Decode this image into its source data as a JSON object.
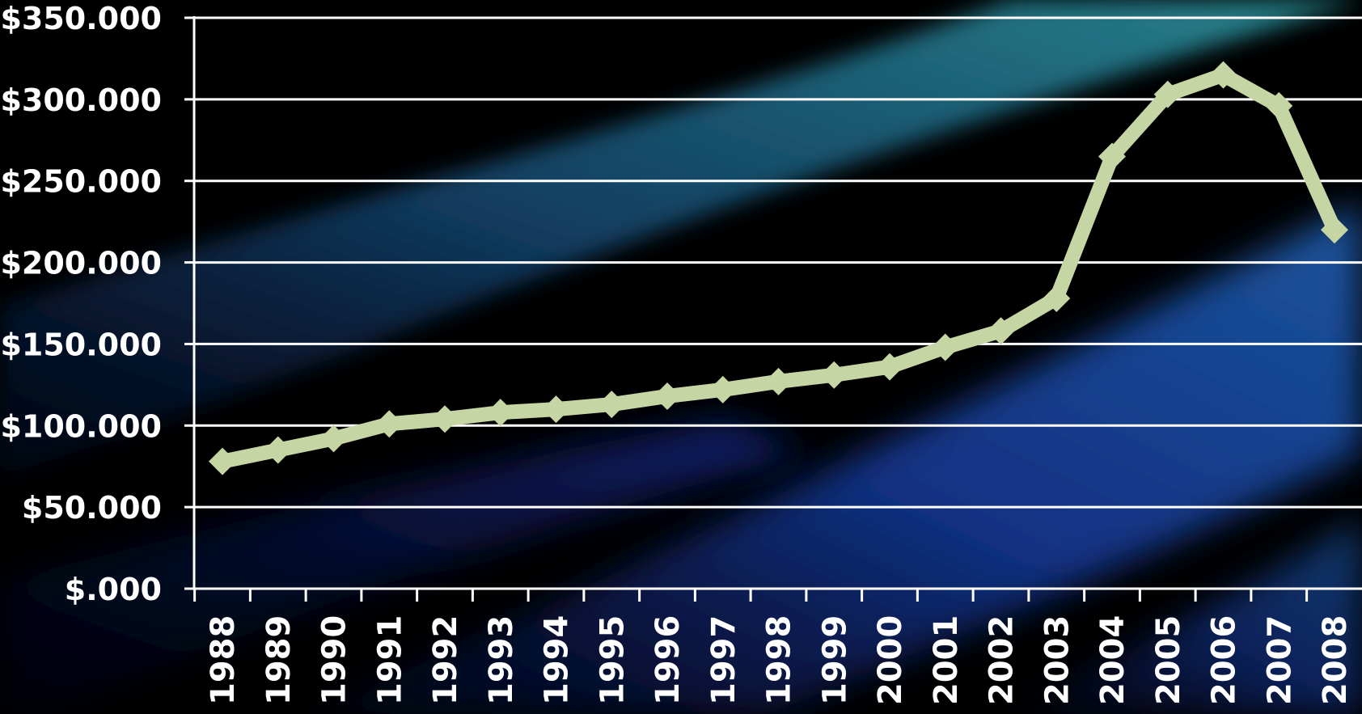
{
  "chart_data": {
    "type": "line",
    "title": "",
    "xlabel": "",
    "ylabel": "",
    "categories": [
      "1988",
      "1989",
      "1990",
      "1991",
      "1992",
      "1993",
      "1994",
      "1995",
      "1996",
      "1997",
      "1998",
      "1999",
      "2000",
      "2001",
      "2002",
      "2003",
      "2004",
      "2005",
      "2006",
      "2007",
      "2008"
    ],
    "series": [
      {
        "values": [
          78000,
          85000,
          92000,
          101000,
          104000,
          108000,
          110000,
          113000,
          118000,
          122000,
          127000,
          131000,
          136000,
          148000,
          158000,
          178000,
          265000,
          303000,
          315000,
          296000,
          220000
        ]
      }
    ],
    "ylim": [
      0,
      350000
    ],
    "y_ticks": [
      0,
      50000,
      100000,
      150000,
      200000,
      250000,
      300000,
      350000
    ],
    "y_tick_labels": [
      "$.000",
      "$50.000",
      "$100.000",
      "$150.000",
      "$200.000",
      "$250.000",
      "$300.000",
      "$350.000"
    ],
    "grid": "horizontal",
    "legend": "none",
    "colors": {
      "line": "#c5d6a4",
      "grid": "#ffffff",
      "axis": "#ffffff",
      "text": "#ffffff",
      "background": "#000000",
      "band_teal": "#1f7a86",
      "band_blue": "#173c9a"
    }
  }
}
